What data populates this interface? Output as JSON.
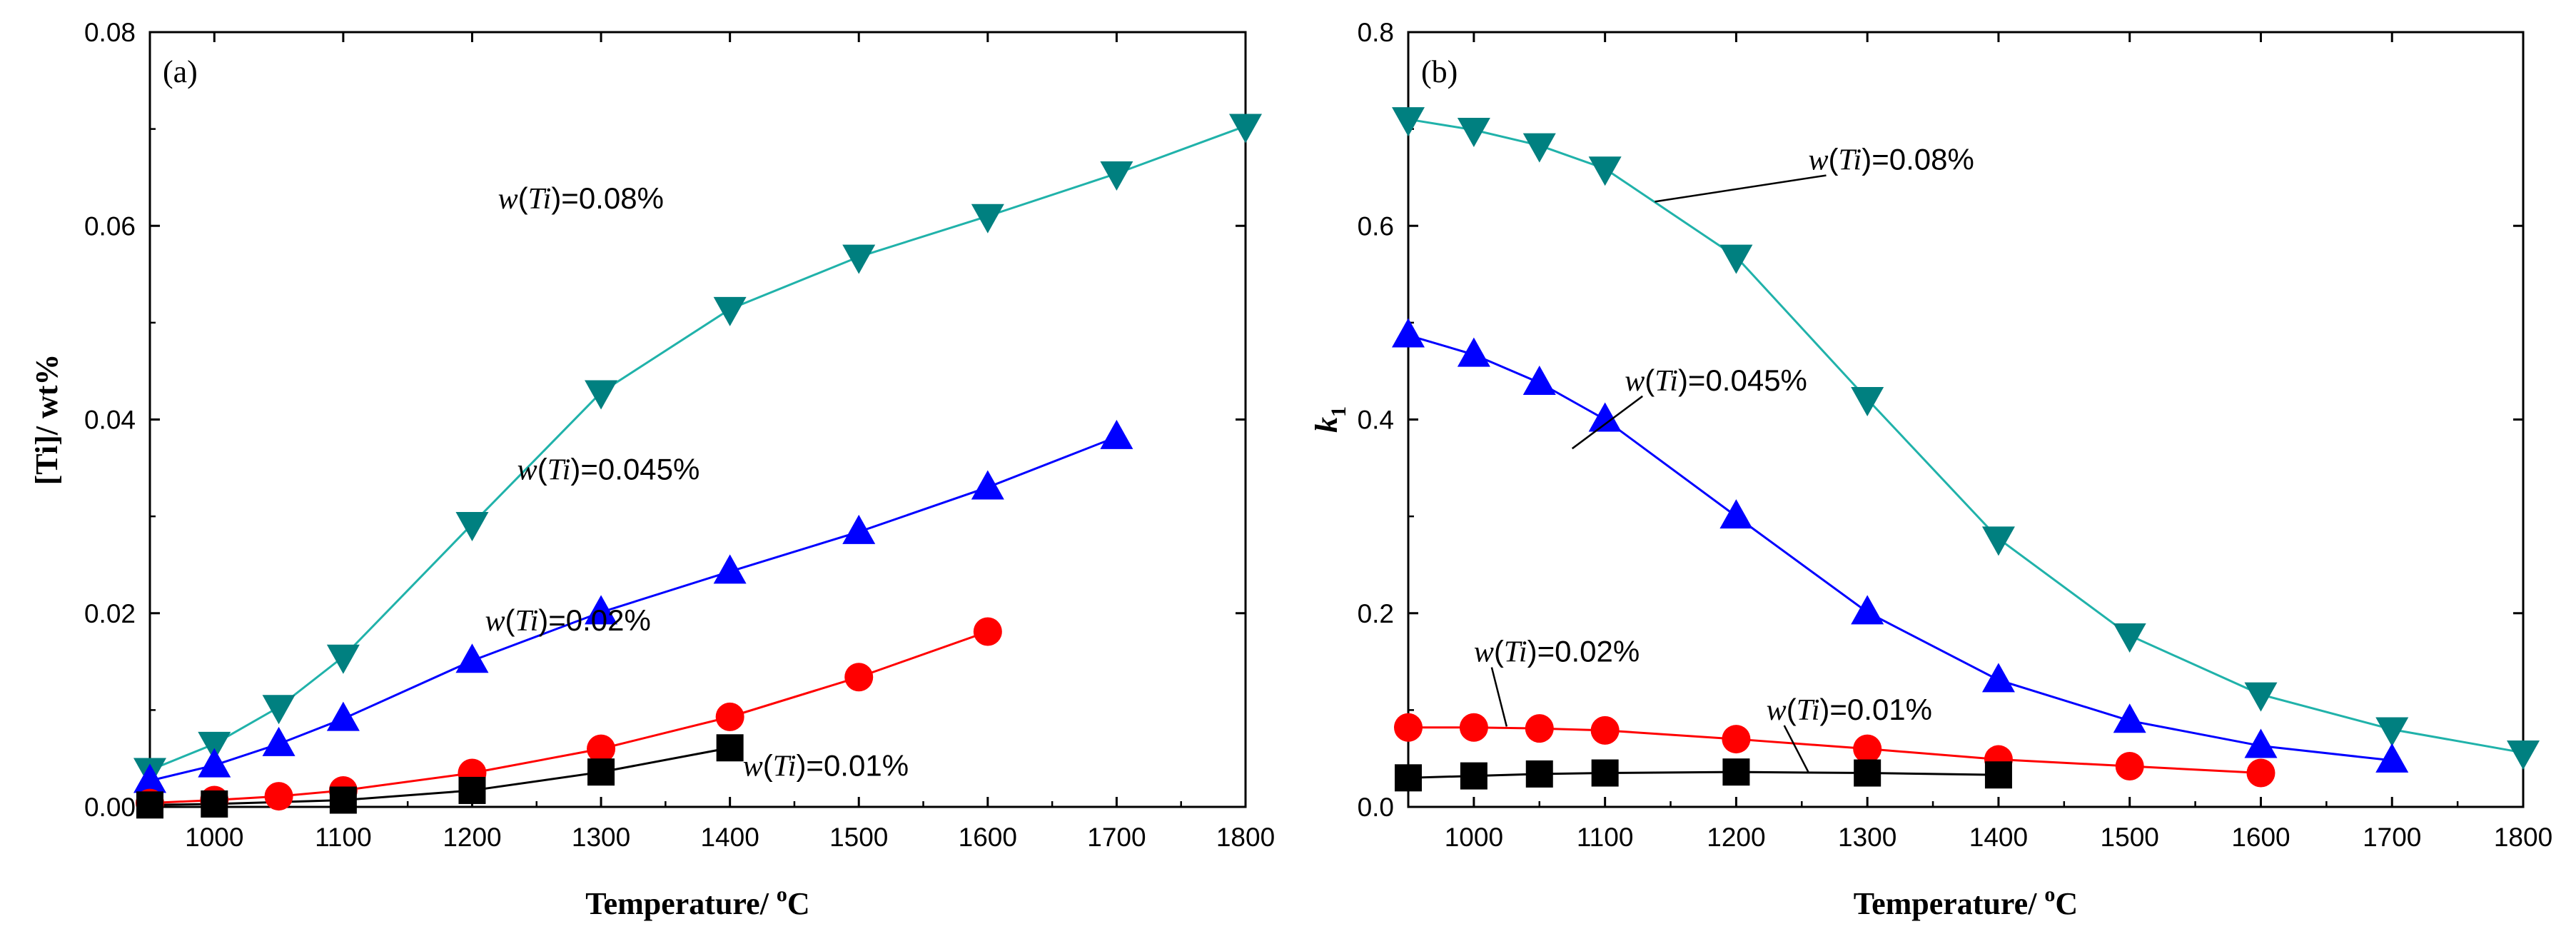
{
  "colors": {
    "w008": "#008080",
    "w008_line": "#20b2aa",
    "w0045": "#0000ff",
    "w002": "#ff0000",
    "w001": "#000000"
  },
  "chart_data": [
    {
      "type": "line",
      "panel_label": "(a)",
      "xlabel": "Temperature/ °C",
      "xlabel_text": "Temperature/",
      "xlabel_unit_sup": "o",
      "xlabel_unit": "C",
      "ylabel": "[Ti]/ wt%",
      "xlim": [
        950,
        1800
      ],
      "ylim": [
        0,
        0.08
      ],
      "xticks": [
        1000,
        1100,
        1200,
        1300,
        1400,
        1500,
        1600,
        1700,
        1800
      ],
      "xtick_labels": [
        "1000",
        "1100",
        "1200",
        "1300",
        "1400",
        "1500",
        "1600",
        "1700",
        "1800"
      ],
      "yticks": [
        0,
        0.02,
        0.04,
        0.06,
        0.08
      ],
      "ytick_labels": [
        "0.00",
        "0.02",
        "0.04",
        "0.06",
        "0.08"
      ],
      "series": [
        {
          "name": "w(Ti)=0.08%",
          "marker": "triangle-down",
          "color_key": "w008",
          "x": [
            950,
            1000,
            1050,
            1100,
            1200,
            1300,
            1400,
            1500,
            1600,
            1700,
            1800
          ],
          "values": [
            0.0038,
            0.0065,
            0.0103,
            0.0155,
            0.0292,
            0.0428,
            0.0514,
            0.0568,
            0.061,
            0.0654,
            0.0703
          ]
        },
        {
          "name": "w(Ti)=0.045%",
          "marker": "triangle-up",
          "color_key": "w0045",
          "x": [
            950,
            1000,
            1050,
            1100,
            1200,
            1300,
            1400,
            1500,
            1600,
            1700
          ],
          "values": [
            0.0027,
            0.0043,
            0.0065,
            0.0091,
            0.0151,
            0.0201,
            0.0243,
            0.0284,
            0.033,
            0.0382
          ]
        },
        {
          "name": "w(Ti)=0.02%",
          "marker": "circle",
          "color_key": "w002",
          "x": [
            950,
            1000,
            1050,
            1100,
            1200,
            1300,
            1400,
            1500,
            1600
          ],
          "values": [
            0.0004,
            0.0007,
            0.0011,
            0.0017,
            0.0035,
            0.006,
            0.0093,
            0.0134,
            0.0181
          ]
        },
        {
          "name": "w(Ti)=0.01%",
          "marker": "square",
          "color_key": "w001",
          "x": [
            950,
            1000,
            1100,
            1200,
            1300,
            1400
          ],
          "values": [
            0.0002,
            0.0003,
            0.0007,
            0.0017,
            0.0036,
            0.0061
          ]
        }
      ],
      "annotations": [
        {
          "text": "w(Ti)=0.08%",
          "var": "w",
          "sub": "Ti",
          "val": "=0.08%",
          "at": [
            1220,
            0.0618
          ],
          "leader": false
        },
        {
          "text": "w(Ti)=0.045%",
          "var": "w",
          "sub": "Ti",
          "val": "=0.045%",
          "at": [
            1235,
            0.0338
          ],
          "leader": false
        },
        {
          "text": "w(Ti)=0.02%",
          "var": "w",
          "sub": "Ti",
          "val": "=0.02%",
          "at": [
            1210,
            0.0182
          ],
          "leader": false
        },
        {
          "text": "w(Ti)=0.01%",
          "var": "w",
          "sub": "Ti",
          "val": "=0.01%",
          "at": [
            1410,
            0.0032
          ],
          "leader": false
        }
      ]
    },
    {
      "type": "line",
      "panel_label": "(b)",
      "xlabel": "Temperature/ °C",
      "xlabel_text": "Temperature/",
      "xlabel_unit_sup": "o",
      "xlabel_unit": "C",
      "ylabel": "k1",
      "ylabel_main": "k",
      "ylabel_sub": "1",
      "xlim": [
        950,
        1800
      ],
      "ylim": [
        0,
        0.8
      ],
      "xticks": [
        1000,
        1100,
        1200,
        1300,
        1400,
        1500,
        1600,
        1700,
        1800
      ],
      "xtick_labels": [
        "1000",
        "1100",
        "1200",
        "1300",
        "1400",
        "1500",
        "1600",
        "1700",
        "1800"
      ],
      "yticks": [
        0,
        0.2,
        0.4,
        0.6,
        0.8
      ],
      "ytick_labels": [
        "0.0",
        "0.2",
        "0.4",
        "0.6",
        "0.8"
      ],
      "series": [
        {
          "name": "w(Ti)=0.08%",
          "marker": "triangle-down",
          "color_key": "w008",
          "x": [
            950,
            1000,
            1050,
            1100,
            1200,
            1300,
            1400,
            1500,
            1600,
            1700,
            1800
          ],
          "values": [
            0.71,
            0.699,
            0.683,
            0.659,
            0.568,
            0.421,
            0.277,
            0.177,
            0.116,
            0.08,
            0.056
          ]
        },
        {
          "name": "w(Ti)=0.045%",
          "marker": "triangle-up",
          "color_key": "w0045",
          "x": [
            950,
            1000,
            1050,
            1100,
            1200,
            1300,
            1400,
            1500,
            1600,
            1700
          ],
          "values": [
            0.487,
            0.467,
            0.438,
            0.4,
            0.3,
            0.201,
            0.131,
            0.089,
            0.063,
            0.048
          ]
        },
        {
          "name": "w(Ti)=0.02%",
          "marker": "circle",
          "color_key": "w002",
          "x": [
            950,
            1000,
            1050,
            1100,
            1200,
            1300,
            1400,
            1500,
            1600
          ],
          "values": [
            0.082,
            0.082,
            0.081,
            0.079,
            0.07,
            0.06,
            0.049,
            0.042,
            0.035
          ]
        },
        {
          "name": "w(Ti)=0.01%",
          "marker": "square",
          "color_key": "w001",
          "x": [
            950,
            1000,
            1050,
            1100,
            1200,
            1300,
            1400
          ],
          "values": [
            0.03,
            0.032,
            0.034,
            0.035,
            0.036,
            0.035,
            0.033
          ]
        }
      ],
      "annotations": [
        {
          "text": "w(Ti)=0.08%",
          "var": "w",
          "sub": "Ti",
          "val": "=0.08%",
          "at": [
            1255,
            0.658
          ],
          "leader": true,
          "to": [
            1138,
            0.625
          ]
        },
        {
          "text": "w(Ti)=0.045%",
          "var": "w",
          "sub": "Ti",
          "val": "=0.045%",
          "at": [
            1115,
            0.43
          ],
          "leader": true,
          "to": [
            1075,
            0.37
          ]
        },
        {
          "text": "w(Ti)=0.02%",
          "var": "w",
          "sub": "Ti",
          "val": "=0.02%",
          "at": [
            1000,
            0.15
          ],
          "leader": true,
          "to": [
            1025,
            0.083
          ]
        },
        {
          "text": "w(Ti)=0.01%",
          "var": "w",
          "sub": "Ti",
          "val": "=0.01%",
          "at": [
            1223,
            0.09
          ],
          "leader": true,
          "to": [
            1255,
            0.036
          ]
        }
      ]
    }
  ]
}
